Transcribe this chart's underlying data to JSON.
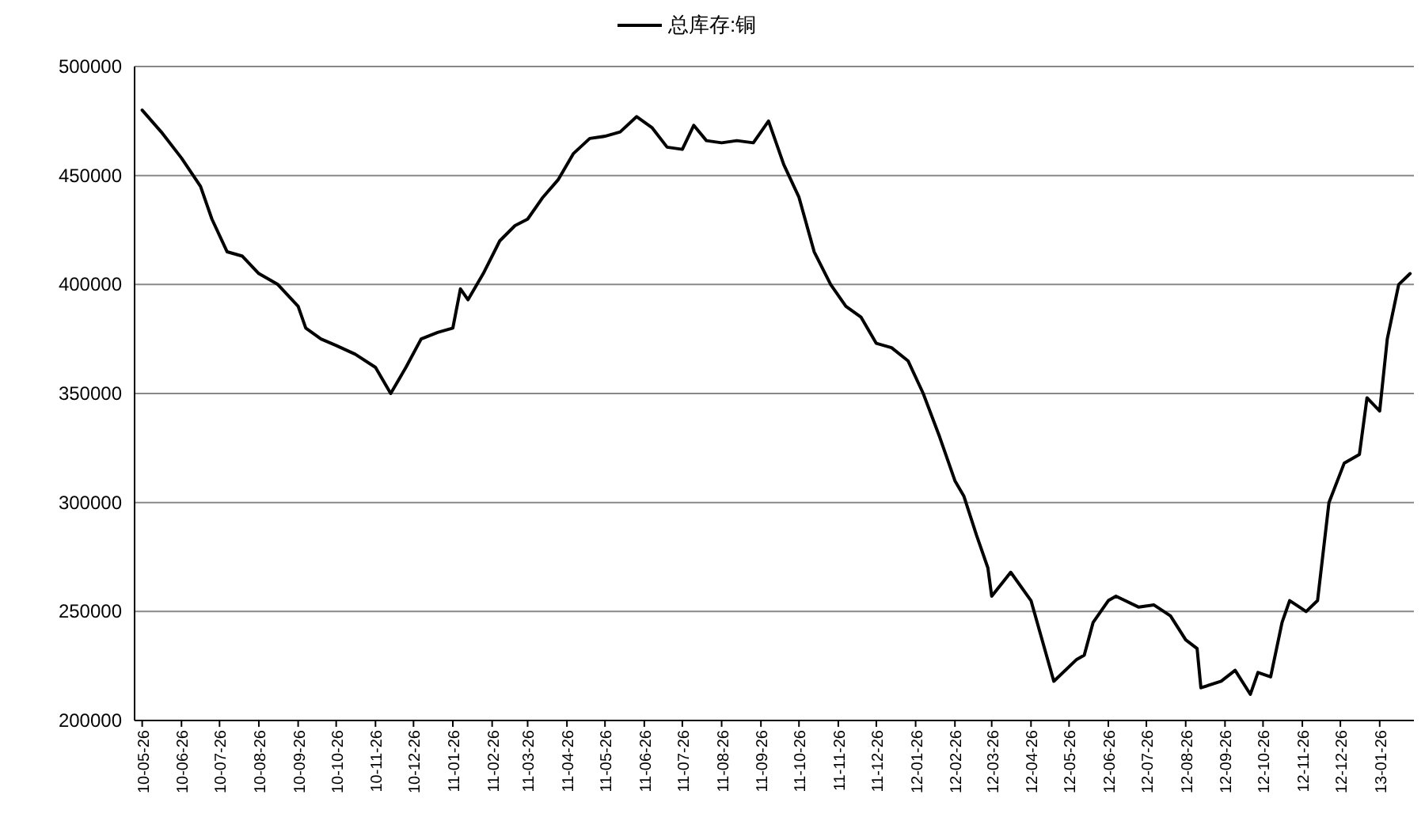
{
  "chart_data": {
    "type": "line",
    "legend": "top",
    "grid": "y",
    "marker": "none",
    "line_style": "solid",
    "ylim": [
      200000,
      500000
    ],
    "yticks": [
      200000,
      250000,
      300000,
      350000,
      400000,
      450000,
      500000
    ],
    "xlim": [
      "2010-05-20",
      "2013-02-22"
    ],
    "xticks": [
      {
        "value": "2010-05-26",
        "label": "10-05-26"
      },
      {
        "value": "2010-06-26",
        "label": "10-06-26"
      },
      {
        "value": "2010-07-26",
        "label": "10-07-26"
      },
      {
        "value": "2010-08-26",
        "label": "10-08-26"
      },
      {
        "value": "2010-09-26",
        "label": "10-09-26"
      },
      {
        "value": "2010-10-26",
        "label": "10-10-26"
      },
      {
        "value": "2010-11-26",
        "label": "10-11-26"
      },
      {
        "value": "2010-12-26",
        "label": "10-12-26"
      },
      {
        "value": "2011-01-26",
        "label": "11-01-26"
      },
      {
        "value": "2011-02-26",
        "label": "11-02-26"
      },
      {
        "value": "2011-03-26",
        "label": "11-03-26"
      },
      {
        "value": "2011-04-26",
        "label": "11-04-26"
      },
      {
        "value": "2011-05-26",
        "label": "11-05-26"
      },
      {
        "value": "2011-06-26",
        "label": "11-06-26"
      },
      {
        "value": "2011-07-26",
        "label": "11-07-26"
      },
      {
        "value": "2011-08-26",
        "label": "11-08-26"
      },
      {
        "value": "2011-09-26",
        "label": "11-09-26"
      },
      {
        "value": "2011-10-26",
        "label": "11-10-26"
      },
      {
        "value": "2011-11-26",
        "label": "11-11-26"
      },
      {
        "value": "2011-12-26",
        "label": "11-12-26"
      },
      {
        "value": "2012-01-26",
        "label": "12-01-26"
      },
      {
        "value": "2012-02-26",
        "label": "12-02-26"
      },
      {
        "value": "2012-03-26",
        "label": "12-03-26"
      },
      {
        "value": "2012-04-26",
        "label": "12-04-26"
      },
      {
        "value": "2012-05-26",
        "label": "12-05-26"
      },
      {
        "value": "2012-06-26",
        "label": "12-06-26"
      },
      {
        "value": "2012-07-26",
        "label": "12-07-26"
      },
      {
        "value": "2012-08-26",
        "label": "12-08-26"
      },
      {
        "value": "2012-09-26",
        "label": "12-09-26"
      },
      {
        "value": "2012-10-26",
        "label": "12-10-26"
      },
      {
        "value": "2012-11-26",
        "label": "12-11-26"
      },
      {
        "value": "2012-12-26",
        "label": "12-12-26"
      },
      {
        "value": "2013-01-26",
        "label": "13-01-26"
      }
    ],
    "x": [
      "2010-05-26",
      "2010-06-10",
      "2010-06-26",
      "2010-07-11",
      "2010-07-20",
      "2010-08-01",
      "2010-08-13",
      "2010-08-26",
      "2010-09-10",
      "2010-09-26",
      "2010-10-02",
      "2010-10-14",
      "2010-10-26",
      "2010-11-10",
      "2010-11-26",
      "2010-12-08",
      "2010-12-20",
      "2011-01-01",
      "2011-01-14",
      "2011-01-26",
      "2011-02-01",
      "2011-02-07",
      "2011-02-19",
      "2011-03-04",
      "2011-03-16",
      "2011-03-26",
      "2011-04-07",
      "2011-04-19",
      "2011-05-01",
      "2011-05-14",
      "2011-05-26",
      "2011-06-07",
      "2011-06-20",
      "2011-07-02",
      "2011-07-14",
      "2011-07-26",
      "2011-08-04",
      "2011-08-14",
      "2011-08-26",
      "2011-09-07",
      "2011-09-20",
      "2011-10-02",
      "2011-10-14",
      "2011-10-26",
      "2011-11-07",
      "2011-11-20",
      "2011-12-02",
      "2011-12-14",
      "2011-12-26",
      "2012-01-07",
      "2012-01-20",
      "2012-02-01",
      "2012-02-14",
      "2012-02-26",
      "2012-03-04",
      "2012-03-14",
      "2012-03-23",
      "2012-03-26",
      "2012-04-10",
      "2012-04-26",
      "2012-05-14",
      "2012-06-01",
      "2012-06-07",
      "2012-06-14",
      "2012-06-26",
      "2012-07-02",
      "2012-07-20",
      "2012-08-01",
      "2012-08-14",
      "2012-08-26",
      "2012-09-04",
      "2012-09-07",
      "2012-09-23",
      "2012-10-04",
      "2012-10-16",
      "2012-10-22",
      "2012-11-01",
      "2012-11-10",
      "2012-11-16",
      "2012-11-29",
      "2012-12-08",
      "2012-12-17",
      "2012-12-29",
      "2013-01-10",
      "2013-01-16",
      "2013-01-26",
      "2013-02-01",
      "2013-02-10",
      "2013-02-19"
    ],
    "series": [
      {
        "name": "总库存:铜",
        "color": "#000000",
        "values": [
          480000,
          470000,
          458000,
          445000,
          430000,
          415000,
          413000,
          405000,
          400000,
          390000,
          380000,
          375000,
          372000,
          368000,
          362000,
          350000,
          362000,
          375000,
          378000,
          380000,
          398000,
          393000,
          405000,
          420000,
          427000,
          430000,
          440000,
          448000,
          460000,
          467000,
          468000,
          470000,
          477000,
          472000,
          463000,
          462000,
          473000,
          466000,
          465000,
          466000,
          465000,
          475000,
          455000,
          440000,
          415000,
          400000,
          390000,
          385000,
          373000,
          371000,
          365000,
          350000,
          330000,
          310000,
          303000,
          285000,
          270000,
          257000,
          268000,
          255000,
          218000,
          228000,
          230000,
          245000,
          255000,
          257000,
          252000,
          253000,
          248000,
          237000,
          233000,
          215000,
          218000,
          223000,
          212000,
          222000,
          220000,
          245000,
          255000,
          250000,
          255000,
          300000,
          318000,
          322000,
          348000,
          342000,
          375000,
          400000,
          405000
        ]
      }
    ]
  }
}
